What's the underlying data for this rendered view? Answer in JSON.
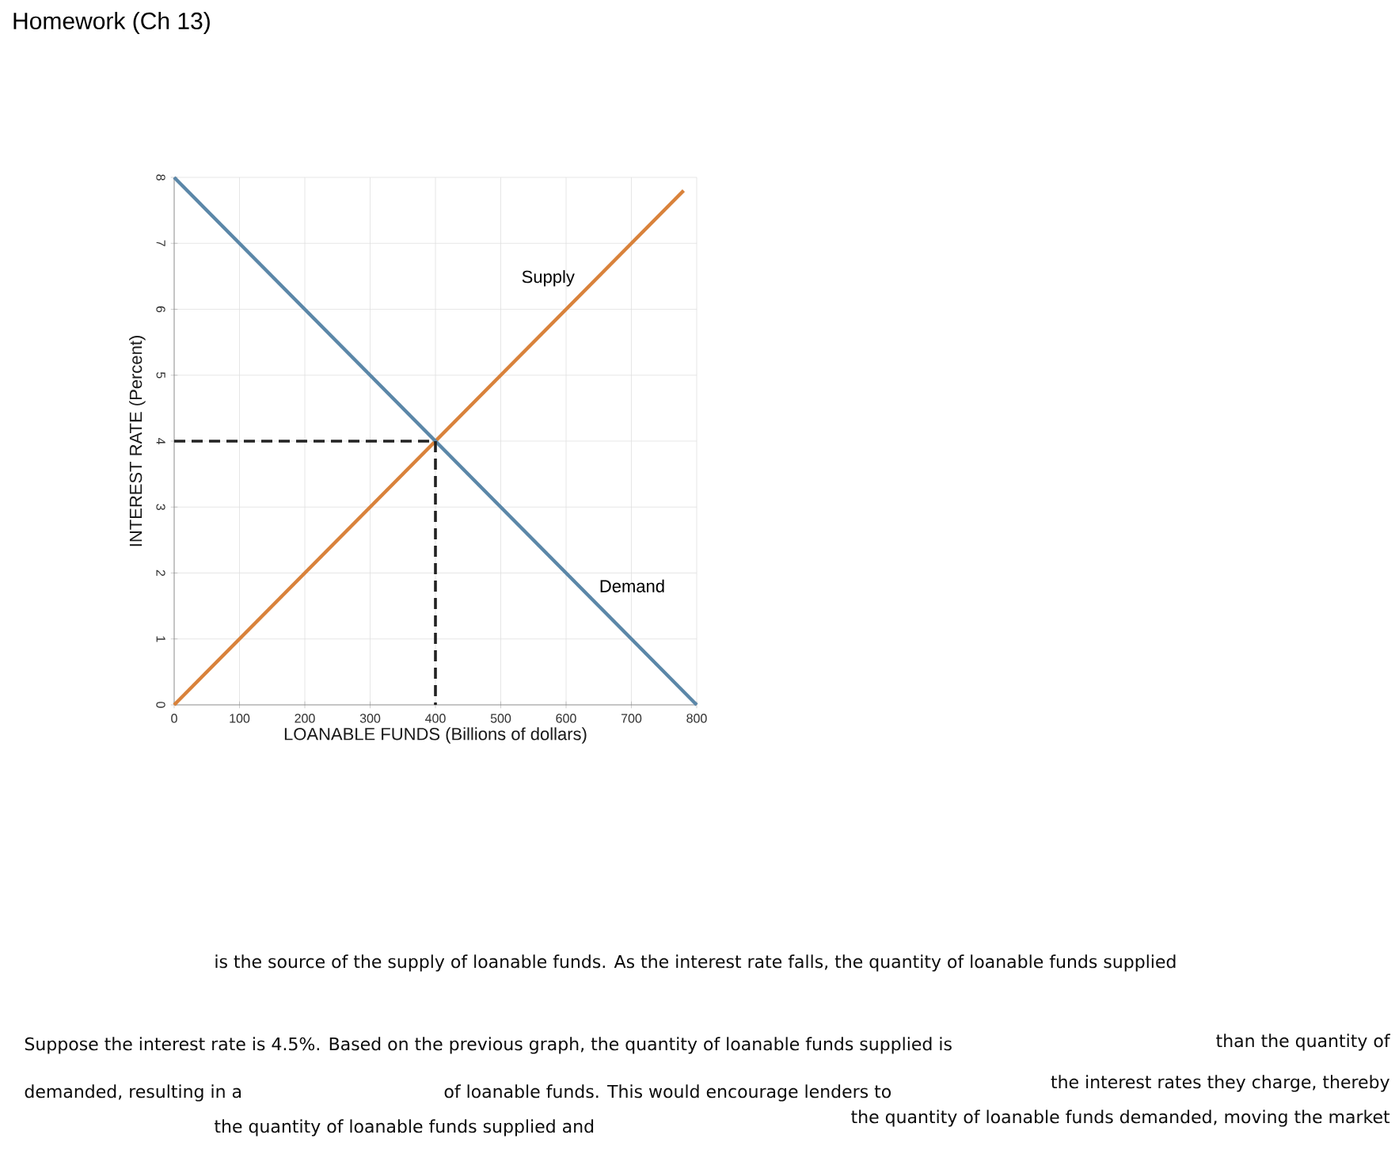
{
  "chart_data": {
    "type": "line",
    "title": "Homework (Ch 13)",
    "xlabel": "LOANABLE FUNDS (Billions of dollars)",
    "ylabel": "INTEREST RATE (Percent)",
    "xlim": [
      0,
      800
    ],
    "ylim": [
      0,
      8
    ],
    "xticks": [
      0,
      100,
      200,
      300,
      400,
      500,
      600,
      700,
      800
    ],
    "yticks": [
      0,
      1,
      2,
      3,
      4,
      5,
      6,
      7,
      8
    ],
    "grid": true,
    "series": [
      {
        "name": "Supply",
        "color": "#d9823b",
        "x": [
          0,
          780
        ],
        "values": [
          0,
          7.8
        ]
      },
      {
        "name": "Demand",
        "color": "#5b87a8",
        "x": [
          0,
          800
        ],
        "values": [
          8,
          0
        ]
      },
      {
        "color": "#222222",
        "line_style": "dashed",
        "x": [
          0,
          400,
          400
        ],
        "values": [
          4,
          4,
          0
        ]
      }
    ],
    "annotations": [
      "is the source of the supply of loanable funds. As the interest rate falls, the quantity of loanable funds supplied",
      "Suppose the interest rate is 4.5%. Based on the previous graph, the quantity of loanable funds supplied is",
      "than the quantity of",
      "demanded, resulting in a",
      "of loanable funds. This would encourage lenders to",
      "the interest rates they charge, thereby",
      "the quantity of loanable funds supplied and",
      "the quantity of loanable funds demanded, moving the market"
    ]
  }
}
